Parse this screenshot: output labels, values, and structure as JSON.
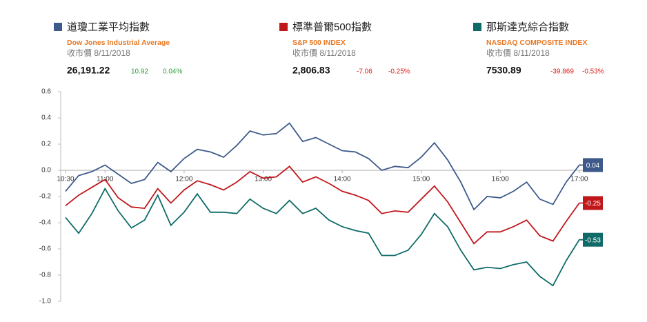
{
  "header": {
    "indices": [
      {
        "english": "Dow Jones Industrial Average",
        "date": "收市價 8/11/2018",
        "close": "26,191.22",
        "change": "10.92",
        "percent": "0.04%"
      },
      {
        "english": "S&P 500 INDEX",
        "date": "收市價 8/11/2018",
        "close": "2,806.83",
        "change": "-7.06",
        "percent": "-0.25%"
      },
      {
        "english": "NASDAQ COMPOSITE INDEX",
        "date": "收市價 8/11/2018",
        "close": "7530.89",
        "change": "-39.869",
        "percent": "-0.53%"
      }
    ]
  },
  "chart_data": {
    "type": "line",
    "categories": [
      "10:30",
      null,
      null,
      "11:00",
      null,
      null,
      null,
      null,
      null,
      "12:00",
      null,
      null,
      null,
      null,
      null,
      "13:00",
      null,
      null,
      null,
      null,
      null,
      "14:00",
      null,
      null,
      null,
      null,
      null,
      "15:00",
      null,
      null,
      null,
      null,
      null,
      "16:00",
      null,
      null,
      null,
      null,
      null,
      "17:00",
      null
    ],
    "ylim": [
      -1.0,
      0.6
    ],
    "yticks": [
      0.6,
      0.4,
      0.2,
      {
        "value": 0,
        "label": "0.0"
      },
      -0.2,
      -0.4,
      -0.6,
      -0.8,
      {
        "value": -1.0,
        "label": "-1.0"
      }
    ],
    "grid": false,
    "series": [
      {
        "name": "道瓊工業平均指數",
        "color": "#3d5a8a",
        "values": [
          -0.16,
          -0.04,
          -0.01,
          0.04,
          -0.03,
          -0.1,
          -0.07,
          0.06,
          -0.01,
          0.09,
          0.16,
          0.14,
          0.1,
          0.19,
          0.3,
          0.27,
          0.28,
          0.36,
          0.22,
          0.25,
          0.2,
          0.15,
          0.14,
          0.09,
          0.0,
          0.03,
          0.02,
          0.1,
          0.21,
          0.08,
          -0.09,
          -0.3,
          -0.2,
          -0.21,
          -0.16,
          -0.09,
          -0.22,
          -0.26,
          -0.09,
          0.04,
          0.04
        ]
      },
      {
        "name": "標準普爾500指數",
        "color": "#c0171b",
        "values": [
          -0.27,
          -0.19,
          -0.13,
          -0.07,
          -0.21,
          -0.28,
          -0.29,
          -0.14,
          -0.25,
          -0.15,
          -0.08,
          -0.11,
          -0.15,
          -0.09,
          -0.01,
          -0.06,
          -0.05,
          0.03,
          -0.09,
          -0.05,
          -0.1,
          -0.16,
          -0.19,
          -0.23,
          -0.33,
          -0.31,
          -0.32,
          -0.22,
          -0.12,
          -0.24,
          -0.4,
          -0.56,
          -0.47,
          -0.47,
          -0.43,
          -0.38,
          -0.5,
          -0.54,
          -0.39,
          -0.25,
          -0.25
        ]
      },
      {
        "name": "那斯達克綜合指數",
        "color": "#0e6b68",
        "values": [
          -0.36,
          -0.48,
          -0.33,
          -0.14,
          -0.31,
          -0.44,
          -0.38,
          -0.19,
          -0.42,
          -0.32,
          -0.18,
          -0.32,
          -0.32,
          -0.33,
          -0.22,
          -0.29,
          -0.33,
          -0.23,
          -0.33,
          -0.29,
          -0.38,
          -0.43,
          -0.46,
          -0.48,
          -0.65,
          -0.65,
          -0.61,
          -0.49,
          -0.33,
          -0.43,
          -0.61,
          -0.76,
          -0.74,
          -0.75,
          -0.72,
          -0.7,
          -0.81,
          -0.88,
          -0.69,
          -0.53,
          -0.53
        ]
      }
    ]
  }
}
